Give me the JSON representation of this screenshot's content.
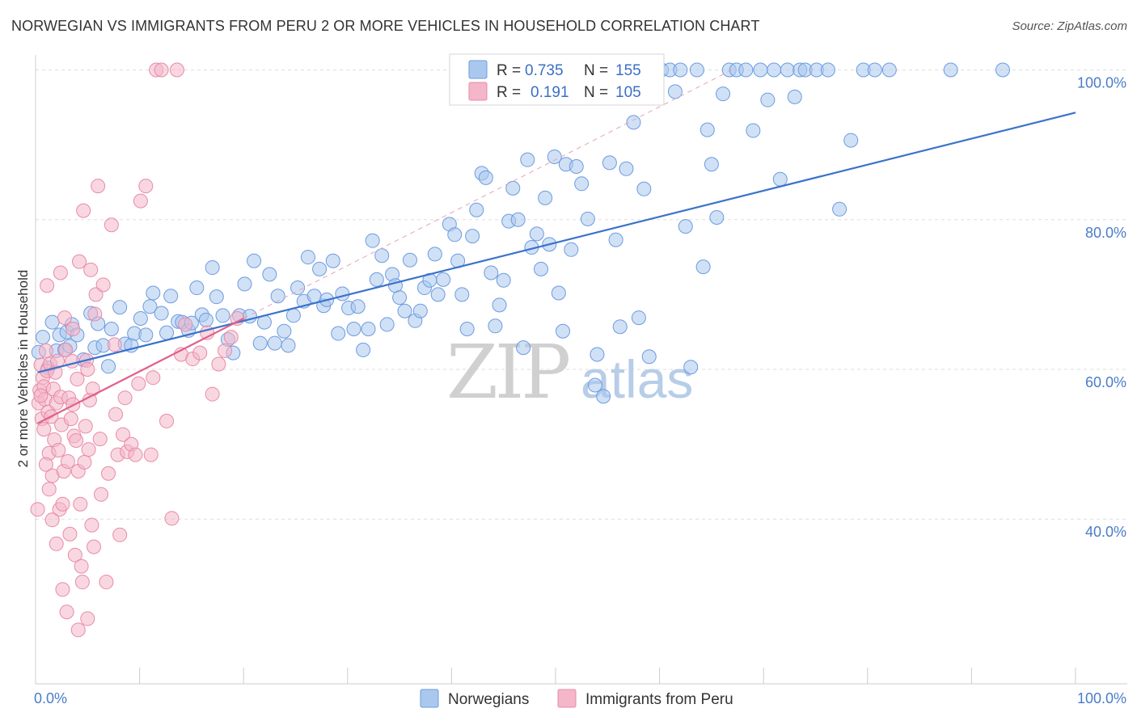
{
  "title": "NORWEGIAN VS IMMIGRANTS FROM PERU 2 OR MORE VEHICLES IN HOUSEHOLD CORRELATION CHART",
  "source": "Source: ZipAtlas.com",
  "watermark": {
    "zip": "ZIP",
    "atlas": "atlas"
  },
  "colors": {
    "blue": "#3b72cc",
    "blue_fill": "#aac8ee",
    "pink": "#e0608b",
    "pink_fill": "#f4b6c9",
    "grid": "#dddddd"
  },
  "legend": {
    "rows": [
      {
        "r_label": "R =",
        "r_value": "0.735",
        "n_label": "N =",
        "n_value": "155"
      },
      {
        "r_label": "R =",
        "r_value": "0.191",
        "n_label": "N =",
        "n_value": "105"
      }
    ]
  },
  "chart_data": {
    "type": "scatter",
    "title": "NORWEGIAN VS IMMIGRANTS FROM PERU 2 OR MORE VEHICLES IN HOUSEHOLD CORRELATION CHART",
    "xlabel": "",
    "ylabel": "2 or more Vehicles in Household",
    "xlim": [
      0,
      100
    ],
    "ylim": [
      18,
      102
    ],
    "x_tick_labels": [
      "0.0%",
      "100.0%"
    ],
    "y_ticks": [
      40,
      60,
      80,
      100
    ],
    "y_tick_labels": [
      "40.0%",
      "60.0%",
      "80.0%",
      "100.0%"
    ],
    "grid": true,
    "legend_position": "top-center",
    "series": [
      {
        "name": "Norwegians",
        "color": "#aac8ee",
        "stroke": "#6d9be0",
        "r": 0.735,
        "n": 155,
        "trend": {
          "x": [
            0.2,
            100
          ],
          "y": [
            59.6,
            94.3
          ]
        },
        "points": [
          [
            0.3,
            62.3
          ],
          [
            0.7,
            64.3
          ],
          [
            1.2,
            60.2
          ],
          [
            1.6,
            66.3
          ],
          [
            2.0,
            62.5
          ],
          [
            2.3,
            64.6
          ],
          [
            2.8,
            62.6
          ],
          [
            3.0,
            65.0
          ],
          [
            3.3,
            63.1
          ],
          [
            3.5,
            66.0
          ],
          [
            4.0,
            64.6
          ],
          [
            4.6,
            61.3
          ],
          [
            5.3,
            67.5
          ],
          [
            5.7,
            62.9
          ],
          [
            6.0,
            66.1
          ],
          [
            6.5,
            63.2
          ],
          [
            7.0,
            60.4
          ],
          [
            7.3,
            65.4
          ],
          [
            8.1,
            68.3
          ],
          [
            8.6,
            63.4
          ],
          [
            9.2,
            63.2
          ],
          [
            9.5,
            64.8
          ],
          [
            10.1,
            66.8
          ],
          [
            10.6,
            64.6
          ],
          [
            11.0,
            68.4
          ],
          [
            11.3,
            70.2
          ],
          [
            12.1,
            67.5
          ],
          [
            12.6,
            64.9
          ],
          [
            13.0,
            69.8
          ],
          [
            13.7,
            66.4
          ],
          [
            14.1,
            66.3
          ],
          [
            14.7,
            65.2
          ],
          [
            15.0,
            66.2
          ],
          [
            15.5,
            70.9
          ],
          [
            16.0,
            67.3
          ],
          [
            16.4,
            66.6
          ],
          [
            17.0,
            73.6
          ],
          [
            17.4,
            69.7
          ],
          [
            18.0,
            67.2
          ],
          [
            18.5,
            64.0
          ],
          [
            19.0,
            62.2
          ],
          [
            19.6,
            67.2
          ],
          [
            20.1,
            71.4
          ],
          [
            20.6,
            67.1
          ],
          [
            21.0,
            74.5
          ],
          [
            21.6,
            63.5
          ],
          [
            22.0,
            66.3
          ],
          [
            22.5,
            72.7
          ],
          [
            23.0,
            63.5
          ],
          [
            23.3,
            69.8
          ],
          [
            23.9,
            65.1
          ],
          [
            24.3,
            63.2
          ],
          [
            24.8,
            67.2
          ],
          [
            25.2,
            70.9
          ],
          [
            25.8,
            69.1
          ],
          [
            26.2,
            75.0
          ],
          [
            26.8,
            69.8
          ],
          [
            27.3,
            73.4
          ],
          [
            27.7,
            68.5
          ],
          [
            28.0,
            69.3
          ],
          [
            28.6,
            74.5
          ],
          [
            29.1,
            64.8
          ],
          [
            29.5,
            70.1
          ],
          [
            30.1,
            68.2
          ],
          [
            30.6,
            65.4
          ],
          [
            31.0,
            68.4
          ],
          [
            31.5,
            62.6
          ],
          [
            32.0,
            65.4
          ],
          [
            32.4,
            77.2
          ],
          [
            32.8,
            72.0
          ],
          [
            33.3,
            75.2
          ],
          [
            33.8,
            66.0
          ],
          [
            34.3,
            72.7
          ],
          [
            34.6,
            71.2
          ],
          [
            35.0,
            69.6
          ],
          [
            35.5,
            67.8
          ],
          [
            36.0,
            74.6
          ],
          [
            36.5,
            66.5
          ],
          [
            37.0,
            67.8
          ],
          [
            37.4,
            70.9
          ],
          [
            37.9,
            71.9
          ],
          [
            38.4,
            75.4
          ],
          [
            38.7,
            70.0
          ],
          [
            39.2,
            72.0
          ],
          [
            39.8,
            79.4
          ],
          [
            40.3,
            78.0
          ],
          [
            40.6,
            74.5
          ],
          [
            41.0,
            70.0
          ],
          [
            41.5,
            65.4
          ],
          [
            42.0,
            77.8
          ],
          [
            42.4,
            81.3
          ],
          [
            42.9,
            86.2
          ],
          [
            43.3,
            85.6
          ],
          [
            43.8,
            72.9
          ],
          [
            44.2,
            65.8
          ],
          [
            44.6,
            68.6
          ],
          [
            45.0,
            71.9
          ],
          [
            45.5,
            79.8
          ],
          [
            45.9,
            84.2
          ],
          [
            46.4,
            80.0
          ],
          [
            46.9,
            62.9
          ],
          [
            47.3,
            88.0
          ],
          [
            47.7,
            76.3
          ],
          [
            48.2,
            78.1
          ],
          [
            48.6,
            73.4
          ],
          [
            49.0,
            82.9
          ],
          [
            49.4,
            76.7
          ],
          [
            49.9,
            88.4
          ],
          [
            50.3,
            70.2
          ],
          [
            50.7,
            65.1
          ],
          [
            51.0,
            87.4
          ],
          [
            51.5,
            76.0
          ],
          [
            52.0,
            87.1
          ],
          [
            52.5,
            84.8
          ],
          [
            53.1,
            80.1
          ],
          [
            53.8,
            57.9
          ],
          [
            54.0,
            62.0
          ],
          [
            54.6,
            56.4
          ],
          [
            55.2,
            87.6
          ],
          [
            55.8,
            77.3
          ],
          [
            56.2,
            65.7
          ],
          [
            56.8,
            86.8
          ],
          [
            57.5,
            93.0
          ],
          [
            58.0,
            66.9
          ],
          [
            58.5,
            84.1
          ],
          [
            59.0,
            61.7
          ],
          [
            59.5,
            100.0
          ],
          [
            60.2,
            100.0
          ],
          [
            61.0,
            100.0
          ],
          [
            61.5,
            97.1
          ],
          [
            62.0,
            100.0
          ],
          [
            62.5,
            79.1
          ],
          [
            63.0,
            60.3
          ],
          [
            63.6,
            100.0
          ],
          [
            64.2,
            73.7
          ],
          [
            64.6,
            92.0
          ],
          [
            65.0,
            87.4
          ],
          [
            65.5,
            80.3
          ],
          [
            66.1,
            96.8
          ],
          [
            66.7,
            100.0
          ],
          [
            67.4,
            100.0
          ],
          [
            68.3,
            100.0
          ],
          [
            69.0,
            91.9
          ],
          [
            69.7,
            100.0
          ],
          [
            70.4,
            96.0
          ],
          [
            71.0,
            100.0
          ],
          [
            71.6,
            85.4
          ],
          [
            72.3,
            100.0
          ],
          [
            73.0,
            96.4
          ],
          [
            73.5,
            100.0
          ],
          [
            74.0,
            100.0
          ],
          [
            75.1,
            100.0
          ],
          [
            76.2,
            100.0
          ],
          [
            77.3,
            81.4
          ],
          [
            78.4,
            90.6
          ],
          [
            79.6,
            100.0
          ],
          [
            80.7,
            100.0
          ],
          [
            82.1,
            100.0
          ],
          [
            88.0,
            100.0
          ],
          [
            93.0,
            100.0
          ]
        ]
      },
      {
        "name": "Immigrants from Peru",
        "color": "#f4b6c9",
        "stroke": "#e88aaa",
        "r": 0.191,
        "n": 105,
        "trend": {
          "x": [
            0.2,
            20
          ],
          "y": [
            52.8,
            66.8
          ]
        },
        "points": [
          [
            0.2,
            41.3
          ],
          [
            0.3,
            55.5
          ],
          [
            0.4,
            57.2
          ],
          [
            0.5,
            60.6
          ],
          [
            0.6,
            53.4
          ],
          [
            0.7,
            58.9
          ],
          [
            0.8,
            57.7
          ],
          [
            0.9,
            56.0
          ],
          [
            1.0,
            62.5
          ],
          [
            1.1,
            59.8
          ],
          [
            1.2,
            54.3
          ],
          [
            1.3,
            48.8
          ],
          [
            1.4,
            60.7
          ],
          [
            1.5,
            53.7
          ],
          [
            1.6,
            45.8
          ],
          [
            1.7,
            57.4
          ],
          [
            1.8,
            50.6
          ],
          [
            1.9,
            59.6
          ],
          [
            2.0,
            55.5
          ],
          [
            2.1,
            61.1
          ],
          [
            2.2,
            49.2
          ],
          [
            2.3,
            41.3
          ],
          [
            2.4,
            56.3
          ],
          [
            2.5,
            52.6
          ],
          [
            2.6,
            42.0
          ],
          [
            2.7,
            46.4
          ],
          [
            2.8,
            66.9
          ],
          [
            2.9,
            62.6
          ],
          [
            3.0,
            27.6
          ],
          [
            3.1,
            47.7
          ],
          [
            3.2,
            56.2
          ],
          [
            3.3,
            38.0
          ],
          [
            3.4,
            53.4
          ],
          [
            3.5,
            61.1
          ],
          [
            3.6,
            55.3
          ],
          [
            3.7,
            51.1
          ],
          [
            3.8,
            35.2
          ],
          [
            3.9,
            50.5
          ],
          [
            4.0,
            58.7
          ],
          [
            4.1,
            46.4
          ],
          [
            4.2,
            74.4
          ],
          [
            4.3,
            42.0
          ],
          [
            4.4,
            33.7
          ],
          [
            4.5,
            31.6
          ],
          [
            4.6,
            81.2
          ],
          [
            4.7,
            47.6
          ],
          [
            4.8,
            52.4
          ],
          [
            4.9,
            61.2
          ],
          [
            5.0,
            60.0
          ],
          [
            5.1,
            49.3
          ],
          [
            5.2,
            55.9
          ],
          [
            5.3,
            73.3
          ],
          [
            5.4,
            39.2
          ],
          [
            5.5,
            57.4
          ],
          [
            5.6,
            36.3
          ],
          [
            5.7,
            67.4
          ],
          [
            5.8,
            70.0
          ],
          [
            6.0,
            84.5
          ],
          [
            6.2,
            50.7
          ],
          [
            6.5,
            71.3
          ],
          [
            6.8,
            31.6
          ],
          [
            7.0,
            46.1
          ],
          [
            7.3,
            79.3
          ],
          [
            7.6,
            63.3
          ],
          [
            7.9,
            48.6
          ],
          [
            8.1,
            37.9
          ],
          [
            8.4,
            51.3
          ],
          [
            8.8,
            49.0
          ],
          [
            9.2,
            50.0
          ],
          [
            9.6,
            48.6
          ],
          [
            10.1,
            82.5
          ],
          [
            10.6,
            84.5
          ],
          [
            11.1,
            48.6
          ],
          [
            11.6,
            100.0
          ],
          [
            12.1,
            100.0
          ],
          [
            12.6,
            53.1
          ],
          [
            13.1,
            40.1
          ],
          [
            13.6,
            100.0
          ],
          [
            14.0,
            62.0
          ],
          [
            14.4,
            66.0
          ],
          [
            15.1,
            61.4
          ],
          [
            15.8,
            62.2
          ],
          [
            16.5,
            64.9
          ],
          [
            17.0,
            56.7
          ],
          [
            17.6,
            60.7
          ],
          [
            18.2,
            62.5
          ],
          [
            18.8,
            64.3
          ],
          [
            19.4,
            66.8
          ],
          [
            1.1,
            71.2
          ],
          [
            2.4,
            72.9
          ],
          [
            3.6,
            65.4
          ],
          [
            0.5,
            56.5
          ],
          [
            0.8,
            52.0
          ],
          [
            1.0,
            47.3
          ],
          [
            1.3,
            44.0
          ],
          [
            1.6,
            39.9
          ],
          [
            2.0,
            36.7
          ],
          [
            2.6,
            30.6
          ],
          [
            4.1,
            25.2
          ],
          [
            5.0,
            26.7
          ],
          [
            6.3,
            43.3
          ],
          [
            7.7,
            54.0
          ],
          [
            8.6,
            56.2
          ],
          [
            9.9,
            58.1
          ],
          [
            11.3,
            58.9
          ]
        ]
      }
    ]
  }
}
